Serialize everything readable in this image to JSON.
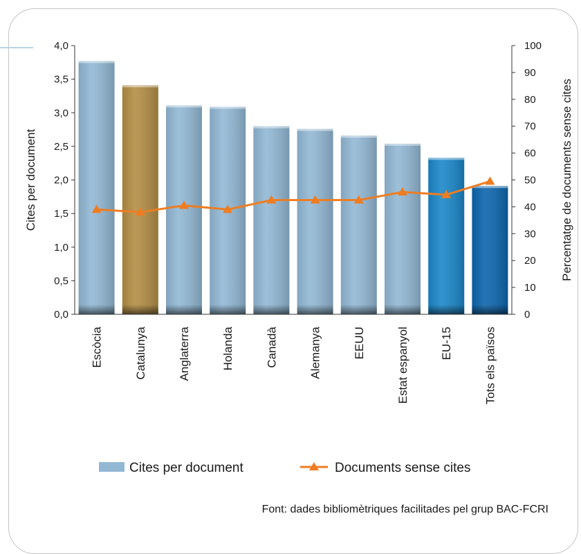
{
  "chart_data": {
    "type": "bar",
    "categories": [
      "Escòcia",
      "Catalunya",
      "Anglaterra",
      "Holanda",
      "Canadà",
      "Alemanya",
      "EEUU",
      "Estat espanyol",
      "EU-15",
      "Tots els països"
    ],
    "series": [
      {
        "name": "Cites per document",
        "type": "bar",
        "axis": "left",
        "values": [
          3.77,
          3.41,
          3.11,
          3.09,
          2.8,
          2.76,
          2.66,
          2.54,
          2.33,
          1.91
        ],
        "colors": [
          "#92b8d4",
          "#b38e45",
          "#92b8d4",
          "#92b8d4",
          "#92b8d4",
          "#92b8d4",
          "#92b8d4",
          "#92b8d4",
          "#1b87c9",
          "#0d66ad"
        ]
      },
      {
        "name": "Documents sense cites",
        "type": "line",
        "axis": "right",
        "values": [
          39,
          38,
          40.5,
          39,
          42.5,
          42.5,
          42.5,
          45.5,
          44.5,
          49.5
        ],
        "color": "#ee7d22",
        "marker": "triangle"
      }
    ],
    "ylabel": "Cites per document",
    "ylabel_right": "Percentatge de documents sense cites",
    "ylim": [
      0,
      4.0
    ],
    "ylim_right": [
      0,
      100
    ],
    "yticks": [
      "0,0",
      "0,5",
      "1,0",
      "1,5",
      "2,0",
      "2,5",
      "3,0",
      "3,5",
      "4,0"
    ],
    "yticks_right": [
      "0",
      "10",
      "20",
      "30",
      "40",
      "50",
      "60",
      "70",
      "80",
      "90",
      "100"
    ],
    "grid": false,
    "legend": {
      "position": "bottom",
      "entries": [
        "Cites per document",
        "Documents sense cites"
      ],
      "bar_color": "#92b8d4",
      "line_color": "#ee7d22"
    },
    "source": "Font: dades bibliomètriques facilitades pel grup BAC-FCRI"
  }
}
